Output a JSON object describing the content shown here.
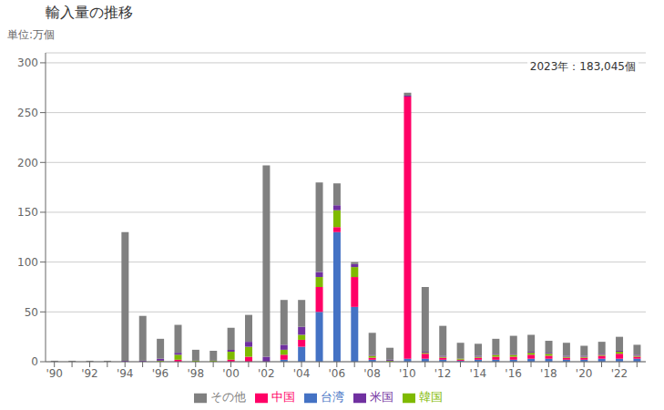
{
  "chart_data": {
    "type": "bar",
    "title": "輸入量の推移",
    "ylabel": "単位:万個",
    "annotation": "2023年：183,045個",
    "categories": [
      "'90",
      null,
      "'92",
      null,
      "'94",
      null,
      "'96",
      null,
      "'98",
      null,
      "'00",
      null,
      "'02",
      null,
      "'04",
      null,
      "'06",
      null,
      "'08",
      null,
      "'10",
      null,
      "'12",
      null,
      "'14",
      null,
      "'16",
      null,
      "'18",
      null,
      "'20",
      null,
      "'22",
      null
    ],
    "series": [
      {
        "name": "台湾",
        "color": "#4472C4",
        "values": [
          0,
          0,
          0,
          0,
          0,
          0,
          0,
          0,
          0,
          0,
          0,
          0,
          0,
          2,
          15,
          50,
          130,
          55,
          2,
          0,
          3,
          3,
          2,
          1,
          2,
          2,
          2,
          3,
          3,
          2,
          2,
          3,
          3,
          3
        ]
      },
      {
        "name": "中国",
        "color": "#FF0066",
        "values": [
          0,
          0,
          0,
          0,
          0,
          0,
          0,
          2,
          0,
          0,
          2,
          5,
          0,
          5,
          7,
          25,
          5,
          30,
          2,
          0,
          263,
          5,
          2,
          1,
          2,
          3,
          3,
          4,
          3,
          2,
          2,
          3,
          5,
          2
        ]
      },
      {
        "name": "韓国",
        "color": "#7FBA00",
        "values": [
          0,
          0,
          0,
          0,
          0,
          0,
          1,
          5,
          1,
          1,
          8,
          10,
          0,
          5,
          5,
          10,
          17,
          10,
          2,
          1,
          0,
          1,
          1,
          1,
          1,
          2,
          2,
          2,
          2,
          1,
          1,
          1,
          2,
          1
        ]
      },
      {
        "name": "米国",
        "color": "#7030A0",
        "values": [
          0,
          0,
          0,
          0,
          1,
          1,
          2,
          2,
          0,
          0,
          2,
          5,
          5,
          5,
          8,
          5,
          5,
          3,
          1,
          1,
          1,
          1,
          1,
          0,
          1,
          1,
          1,
          1,
          1,
          1,
          1,
          1,
          1,
          1
        ]
      },
      {
        "name": "その他",
        "color": "#808080",
        "values": [
          1,
          1,
          1,
          1,
          129,
          45,
          20,
          28,
          11,
          10,
          22,
          27,
          192,
          45,
          27,
          90,
          22,
          2,
          22,
          12,
          3,
          65,
          30,
          16,
          12,
          15,
          18,
          17,
          12,
          13,
          10,
          12,
          14,
          10
        ]
      }
    ],
    "ylim": [
      0,
      310
    ],
    "yticks": [
      0,
      50,
      100,
      150,
      200,
      250,
      300
    ],
    "grid": true,
    "legend": "bottom",
    "stacked": true
  }
}
